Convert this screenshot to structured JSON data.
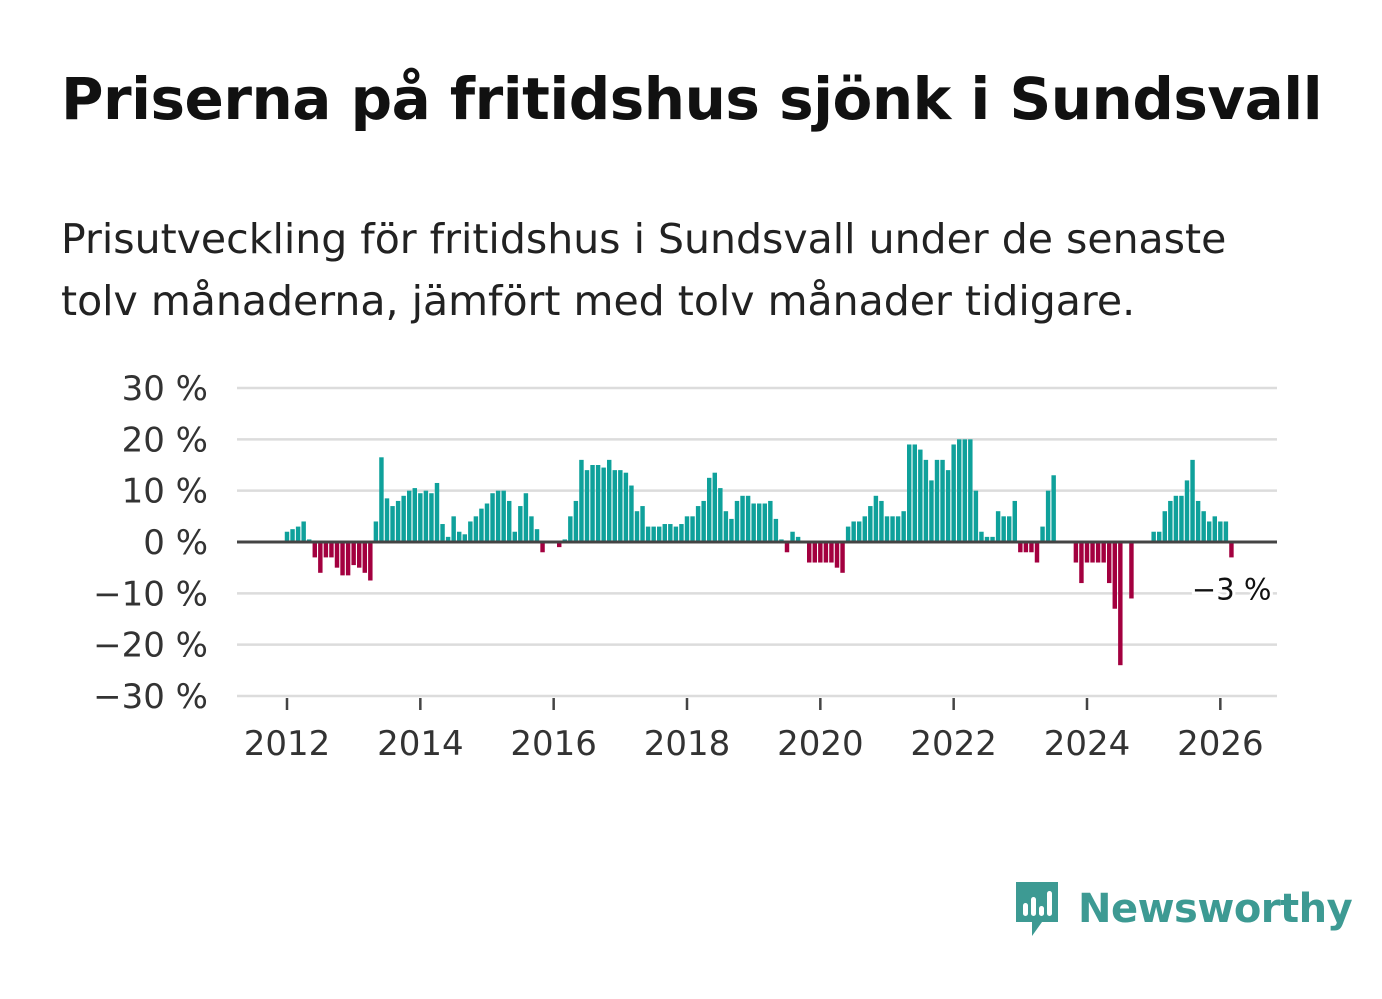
{
  "title": "Priserna på fritidshus sjönk i Sundsvall",
  "subtitle": "Prisutveckling för fritidshus i Sundsvall under de senaste tolv månaderna, jämfört med tolv månader tidigare.",
  "brand": {
    "name": "Newsworthy",
    "color": "#3d9a93"
  },
  "colors": {
    "positive": "#0fa19b",
    "negative": "#a3003f",
    "grid": "#dcdcdc",
    "zero_line": "#444444",
    "axis_text": "#333333"
  },
  "chart_data": {
    "type": "bar",
    "title": "Priserna på fritidshus sjönk i Sundsvall",
    "xlabel": "",
    "ylabel": "",
    "unit": "%",
    "start": "2012-01",
    "step": "month",
    "ylim": [
      -30,
      30
    ],
    "yticks": [
      30,
      20,
      10,
      0,
      -10,
      -20,
      -30
    ],
    "ytick_labels": [
      "30 %",
      "20 %",
      "10 %",
      "0 %",
      "−10 %",
      "−20 %",
      "−30 %"
    ],
    "xticks": [
      2012,
      2014,
      2016,
      2018,
      2020,
      2022,
      2024,
      2026
    ],
    "xtick_labels": [
      "2012",
      "2014",
      "2016",
      "2018",
      "2020",
      "2022",
      "2024",
      "2026"
    ],
    "xlim": [
      2011.25,
      2026.85
    ],
    "last_value_label": "−3 %",
    "values": [
      2,
      2.5,
      3,
      4,
      0.5,
      -3,
      -6,
      -3,
      -3,
      -5,
      -6.5,
      -6.5,
      -4.5,
      -5,
      -6,
      -7.5,
      4,
      16.5,
      8.5,
      7,
      8,
      9,
      10,
      10.5,
      9.5,
      10,
      9.5,
      11.5,
      3.5,
      1,
      5,
      2,
      1.5,
      4,
      5,
      6.5,
      7.5,
      9.5,
      10,
      10,
      8,
      2,
      7,
      9.5,
      5,
      2.5,
      -2,
      0,
      0,
      -1,
      0.5,
      5,
      8,
      16,
      14,
      15,
      15,
      14.5,
      16,
      14,
      14,
      13.5,
      11,
      6,
      7,
      3,
      3,
      3,
      3.5,
      3.5,
      3,
      3.5,
      5,
      5,
      7,
      8,
      12.5,
      13.5,
      10.5,
      6,
      4.5,
      8,
      9,
      9,
      7.5,
      7.5,
      7.5,
      8,
      4.5,
      0.5,
      -2,
      2,
      1,
      0,
      -4,
      -4,
      -4,
      -4,
      -4,
      -5,
      -6,
      3,
      4,
      4,
      5,
      7,
      9,
      8,
      5,
      5,
      5,
      6,
      19,
      19,
      18,
      16,
      12,
      16,
      16,
      14,
      19,
      20,
      20,
      20,
      10,
      2,
      1,
      1,
      6,
      5,
      5,
      8,
      -2,
      -2,
      -2,
      -4,
      3,
      10,
      13,
      0,
      0,
      0,
      -4,
      -8,
      -4,
      -4,
      -4,
      -4,
      -8,
      -13,
      -24,
      0,
      -11,
      0,
      0,
      0,
      2,
      2,
      6,
      8,
      9,
      9,
      12,
      16,
      8,
      6,
      4,
      5,
      4,
      4,
      -3
    ]
  }
}
